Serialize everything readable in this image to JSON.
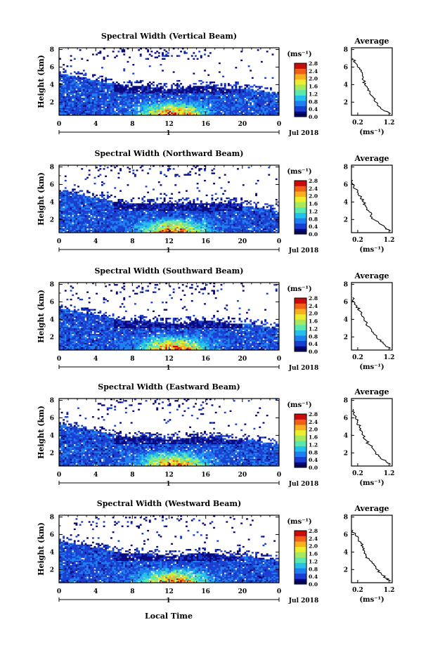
{
  "figure": {
    "y_axis_label": "Height (km)",
    "x_axis_label": "Local Time",
    "colorbar_unit": "(ms⁻¹)",
    "date_label": "Jul 2018",
    "day_label": "1",
    "average_title": "Average",
    "average_xlabel": "(ms⁻¹)"
  },
  "chart_data": [
    {
      "type": "heatmap",
      "title": "Spectral Width (Vertical Beam)",
      "ylabel": "Height (km)",
      "x_ticks": [
        "0",
        "4",
        "8",
        "12",
        "16",
        "20",
        "0"
      ],
      "y_ticks": [
        "2",
        "4",
        "6",
        "8"
      ],
      "xlim": [
        0,
        24
      ],
      "ylim": [
        0.5,
        8.2
      ],
      "colorbar": {
        "ticks": [
          "2.8",
          "2.4",
          "2.0",
          "1.6",
          "1.2",
          "0.8",
          "0.4",
          "0.0"
        ],
        "range": [
          0,
          2.8
        ]
      },
      "colors": [
        "#08087e",
        "#1a3fd0",
        "#1f7ff0",
        "#25c0ea",
        "#5ce6b0",
        "#a6e860",
        "#ecec30",
        "#f6b020",
        "#f06018",
        "#c80c0c"
      ],
      "average": {
        "title": "Average",
        "x_ticks": [
          "0.2",
          "1.2"
        ],
        "y_ticks": [
          "2",
          "4",
          "6",
          "8"
        ],
        "xlim": [
          0,
          1.3
        ],
        "ylim": [
          0.5,
          8.2
        ],
        "height": [
          0.7,
          1.0,
          1.5,
          2.0,
          2.5,
          3.0,
          3.5,
          4.0,
          4.5,
          5.0,
          5.5,
          6.0,
          6.5,
          7.0
        ],
        "value": [
          1.25,
          1.05,
          0.88,
          0.78,
          0.7,
          0.58,
          0.55,
          0.42,
          0.38,
          0.35,
          0.3,
          0.2,
          0.12,
          0.05
        ]
      }
    },
    {
      "type": "heatmap",
      "title": "Spectral Width (Northward Beam)",
      "ylabel": "Height (km)",
      "x_ticks": [
        "0",
        "4",
        "8",
        "12",
        "16",
        "20",
        "0"
      ],
      "y_ticks": [
        "2",
        "4",
        "6",
        "8"
      ],
      "xlim": [
        0,
        24
      ],
      "ylim": [
        0.5,
        8.2
      ],
      "colorbar": {
        "ticks": [
          "2.8",
          "2.4",
          "2.0",
          "1.6",
          "1.2",
          "0.8",
          "0.4",
          "0.0"
        ],
        "range": [
          0,
          2.8
        ]
      },
      "colors": [
        "#08087e",
        "#1a3fd0",
        "#1f7ff0",
        "#25c0ea",
        "#5ce6b0",
        "#a6e860",
        "#ecec30",
        "#f6b020",
        "#f06018",
        "#c80c0c"
      ],
      "average": {
        "title": "Average",
        "x_ticks": [
          "0.2",
          "1.2"
        ],
        "y_ticks": [
          "2",
          "4",
          "6",
          "8"
        ],
        "xlim": [
          0,
          1.3
        ],
        "ylim": [
          0.5,
          8.2
        ],
        "height": [
          0.7,
          1.0,
          1.5,
          2.0,
          2.5,
          3.0,
          3.5,
          4.0,
          4.5,
          5.0,
          5.5,
          6.0,
          6.5
        ],
        "value": [
          1.25,
          1.1,
          0.9,
          0.72,
          0.62,
          0.55,
          0.45,
          0.38,
          0.3,
          0.22,
          0.12,
          0.05,
          0.04
        ]
      }
    },
    {
      "type": "heatmap",
      "title": "Spectral Width (Southward Beam)",
      "ylabel": "Height (km)",
      "x_ticks": [
        "0",
        "4",
        "8",
        "12",
        "16",
        "20",
        "0"
      ],
      "y_ticks": [
        "2",
        "4",
        "6",
        "8"
      ],
      "xlim": [
        0,
        24
      ],
      "ylim": [
        0.5,
        8.2
      ],
      "colorbar": {
        "ticks": [
          "2.8",
          "2.4",
          "2.0",
          "1.6",
          "1.2",
          "0.8",
          "0.4",
          "0.0"
        ],
        "range": [
          0,
          2.8
        ]
      },
      "colors": [
        "#08087e",
        "#1a3fd0",
        "#1f7ff0",
        "#25c0ea",
        "#5ce6b0",
        "#a6e860",
        "#ecec30",
        "#f6b020",
        "#f06018",
        "#c80c0c"
      ],
      "average": {
        "title": "Average",
        "x_ticks": [
          "0.2",
          "1.2"
        ],
        "y_ticks": [
          "2",
          "4",
          "6",
          "8"
        ],
        "xlim": [
          0,
          1.3
        ],
        "ylim": [
          0.5,
          8.2
        ],
        "height": [
          0.7,
          1.0,
          1.5,
          2.0,
          2.5,
          3.0,
          3.5,
          4.0,
          4.5,
          5.0,
          5.5,
          6.0,
          6.5
        ],
        "value": [
          1.25,
          1.08,
          0.92,
          0.8,
          0.7,
          0.6,
          0.48,
          0.4,
          0.32,
          0.25,
          0.18,
          0.08,
          0.04
        ]
      }
    },
    {
      "type": "heatmap",
      "title": "Spectral Width (Eastward Beam)",
      "ylabel": "Height (km)",
      "x_ticks": [
        "0",
        "4",
        "8",
        "12",
        "16",
        "20",
        "0"
      ],
      "y_ticks": [
        "2",
        "4",
        "6",
        "8"
      ],
      "xlim": [
        0,
        24
      ],
      "ylim": [
        0.5,
        8.2
      ],
      "colorbar": {
        "ticks": [
          "2.8",
          "2.4",
          "2.0",
          "1.6",
          "1.2",
          "0.8",
          "0.4",
          "0.0"
        ],
        "range": [
          0,
          2.8
        ]
      },
      "colors": [
        "#08087e",
        "#1a3fd0",
        "#1f7ff0",
        "#25c0ea",
        "#5ce6b0",
        "#a6e860",
        "#ecec30",
        "#f6b020",
        "#f06018",
        "#c80c0c"
      ],
      "average": {
        "title": "Average",
        "x_ticks": [
          "0.2",
          "1.2"
        ],
        "y_ticks": [
          "2",
          "4",
          "6",
          "8"
        ],
        "xlim": [
          0,
          1.3
        ],
        "ylim": [
          0.5,
          8.2
        ],
        "height": [
          0.7,
          1.0,
          1.5,
          2.0,
          2.5,
          3.0,
          3.5,
          4.0,
          4.5,
          5.0,
          5.5,
          6.0,
          6.5,
          7.0
        ],
        "value": [
          1.25,
          1.1,
          0.92,
          0.78,
          0.68,
          0.55,
          0.45,
          0.38,
          0.32,
          0.25,
          0.2,
          0.12,
          0.06,
          0.05
        ]
      }
    },
    {
      "type": "heatmap",
      "title": "Spectral Width (Westward Beam)",
      "ylabel": "Height (km)",
      "x_ticks": [
        "0",
        "4",
        "8",
        "12",
        "16",
        "20",
        "0"
      ],
      "y_ticks": [
        "2",
        "4",
        "6",
        "8"
      ],
      "xlim": [
        0,
        24
      ],
      "ylim": [
        0.5,
        8.2
      ],
      "colorbar": {
        "ticks": [
          "2.8",
          "2.4",
          "2.0",
          "1.6",
          "1.2",
          "0.8",
          "0.4",
          "0.0"
        ],
        "range": [
          0,
          2.8
        ]
      },
      "colors": [
        "#08087e",
        "#1a3fd0",
        "#1f7ff0",
        "#25c0ea",
        "#5ce6b0",
        "#a6e860",
        "#ecec30",
        "#f6b020",
        "#f06018",
        "#c80c0c"
      ],
      "average": {
        "title": "Average",
        "x_ticks": [
          "0.2",
          "1.2"
        ],
        "y_ticks": [
          "2",
          "4",
          "6",
          "8"
        ],
        "xlim": [
          0,
          1.3
        ],
        "ylim": [
          0.5,
          8.2
        ],
        "height": [
          0.7,
          1.0,
          1.5,
          2.0,
          2.5,
          3.0,
          3.5,
          4.0,
          4.5,
          5.0,
          5.5,
          6.0,
          6.5
        ],
        "value": [
          1.25,
          1.12,
          0.95,
          0.82,
          0.72,
          0.6,
          0.48,
          0.42,
          0.35,
          0.3,
          0.22,
          0.12,
          0.05
        ]
      }
    }
  ]
}
